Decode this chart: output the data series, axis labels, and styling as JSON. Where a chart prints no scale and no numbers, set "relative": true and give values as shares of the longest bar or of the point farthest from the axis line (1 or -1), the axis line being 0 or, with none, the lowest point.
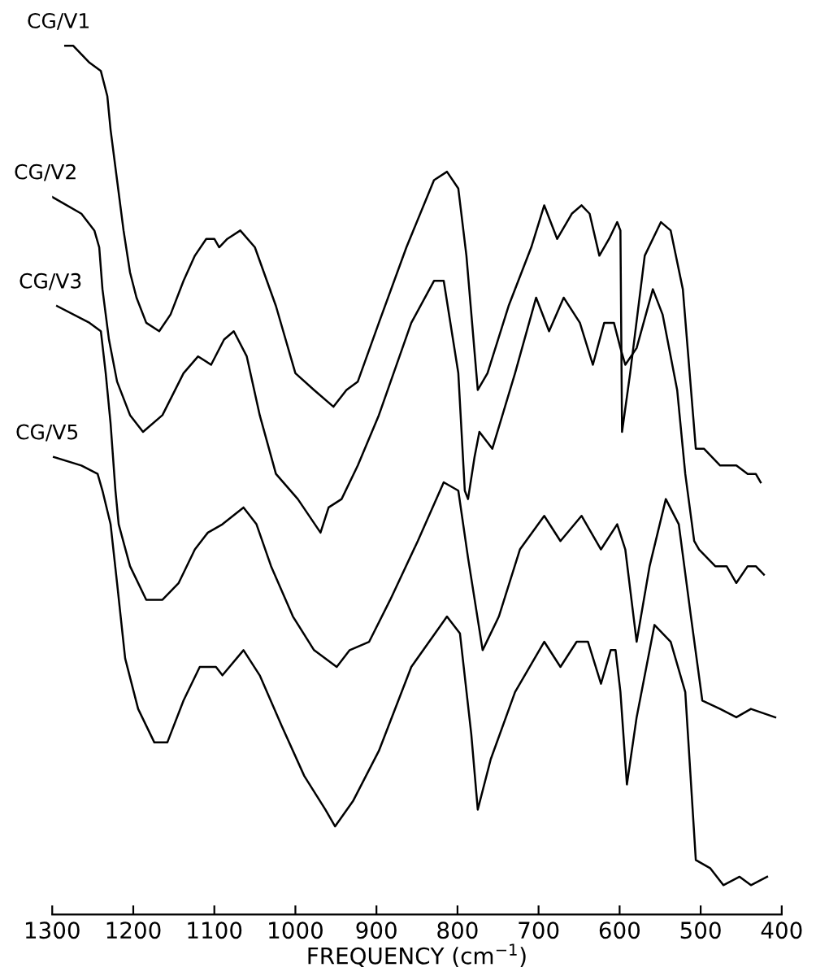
{
  "chart_data": {
    "type": "line",
    "relative": true,
    "xlabel": "FREQUENCY (cm$^{−1}$)",
    "xlim": [
      1300,
      400
    ],
    "xticks": [
      1300,
      1200,
      1100,
      1000,
      900,
      800,
      700,
      600,
      500,
      400
    ],
    "grid": false,
    "legend": false,
    "marker": "none",
    "line_style": "solid",
    "series": [
      {
        "name": "CG/V1",
        "color": "#000000",
        "x": [
          1284,
          1274,
          1254,
          1240,
          1232,
          1228,
          1220,
          1212,
          1204,
          1196,
          1184,
          1168,
          1154,
          1138,
          1124,
          1110,
          1100,
          1094,
          1084,
          1068,
          1050,
          1024,
          1000,
          977,
          953,
          937,
          923,
          897,
          863,
          829,
          813,
          799,
          789,
          775,
          763,
          737,
          709,
          693,
          677,
          659,
          647,
          637,
          625,
          613,
          603,
          599,
          597,
          587,
          569,
          549,
          537,
          522,
          506,
          496,
          476,
          456,
          442,
          432,
          426
        ],
        "values": [
          1.0,
          1.0,
          0.98,
          0.97,
          0.94,
          0.9,
          0.84,
          0.78,
          0.73,
          0.7,
          0.67,
          0.66,
          0.68,
          0.72,
          0.75,
          0.77,
          0.77,
          0.76,
          0.77,
          0.78,
          0.76,
          0.69,
          0.61,
          0.59,
          0.57,
          0.59,
          0.6,
          0.67,
          0.76,
          0.84,
          0.85,
          0.83,
          0.75,
          0.59,
          0.61,
          0.69,
          0.76,
          0.81,
          0.77,
          0.8,
          0.81,
          0.8,
          0.75,
          0.77,
          0.79,
          0.78,
          0.54,
          0.61,
          0.75,
          0.79,
          0.78,
          0.71,
          0.52,
          0.52,
          0.5,
          0.5,
          0.49,
          0.49,
          0.48
        ]
      },
      {
        "name": "CG/V2",
        "color": "#000000",
        "x": [
          1300,
          1264,
          1248,
          1242,
          1238,
          1230,
          1220,
          1204,
          1188,
          1164,
          1138,
          1120,
          1104,
          1088,
          1076,
          1060,
          1044,
          1024,
          997,
          969,
          959,
          943,
          923,
          897,
          857,
          829,
          817,
          799,
          791,
          787,
          779,
          773,
          757,
          729,
          703,
          687,
          669,
          649,
          633,
          619,
          607,
          599,
          593,
          579,
          559,
          547,
          529,
          519,
          508,
          502,
          482,
          468,
          456,
          442,
          432,
          422
        ],
        "values": [
          0.82,
          0.8,
          0.78,
          0.76,
          0.71,
          0.65,
          0.6,
          0.56,
          0.54,
          0.56,
          0.61,
          0.63,
          0.62,
          0.65,
          0.66,
          0.63,
          0.56,
          0.49,
          0.46,
          0.42,
          0.45,
          0.46,
          0.5,
          0.56,
          0.67,
          0.72,
          0.72,
          0.61,
          0.47,
          0.46,
          0.51,
          0.54,
          0.52,
          0.61,
          0.7,
          0.66,
          0.7,
          0.67,
          0.62,
          0.67,
          0.67,
          0.64,
          0.62,
          0.64,
          0.71,
          0.68,
          0.59,
          0.49,
          0.41,
          0.4,
          0.38,
          0.38,
          0.36,
          0.38,
          0.38,
          0.37
        ]
      },
      {
        "name": "CG/V3",
        "color": "#000000",
        "x": [
          1294,
          1254,
          1240,
          1234,
          1228,
          1222,
          1218,
          1204,
          1184,
          1164,
          1144,
          1124,
          1108,
          1090,
          1064,
          1048,
          1030,
          1003,
          977,
          949,
          933,
          909,
          883,
          849,
          817,
          799,
          787,
          769,
          749,
          723,
          693,
          673,
          647,
          623,
          603,
          593,
          579,
          563,
          543,
          527,
          512,
          498,
          476,
          456,
          438,
          408
        ],
        "values": [
          0.69,
          0.67,
          0.66,
          0.61,
          0.55,
          0.47,
          0.43,
          0.38,
          0.34,
          0.34,
          0.36,
          0.4,
          0.42,
          0.43,
          0.45,
          0.43,
          0.38,
          0.32,
          0.28,
          0.26,
          0.28,
          0.29,
          0.34,
          0.41,
          0.48,
          0.47,
          0.39,
          0.28,
          0.32,
          0.4,
          0.44,
          0.41,
          0.44,
          0.4,
          0.43,
          0.4,
          0.29,
          0.38,
          0.46,
          0.43,
          0.32,
          0.22,
          0.21,
          0.2,
          0.21,
          0.2
        ]
      },
      {
        "name": "CG/V5",
        "color": "#000000",
        "x": [
          1298,
          1264,
          1244,
          1238,
          1228,
          1220,
          1210,
          1194,
          1174,
          1158,
          1138,
          1118,
          1098,
          1090,
          1064,
          1044,
          1017,
          989,
          963,
          951,
          929,
          897,
          857,
          813,
          797,
          783,
          775,
          759,
          729,
          693,
          673,
          653,
          639,
          623,
          611,
          605,
          599,
          591,
          579,
          557,
          537,
          519,
          506,
          488,
          472,
          452,
          438,
          418
        ],
        "values": [
          0.51,
          0.5,
          0.49,
          0.47,
          0.43,
          0.36,
          0.27,
          0.21,
          0.17,
          0.17,
          0.22,
          0.26,
          0.26,
          0.25,
          0.28,
          0.25,
          0.19,
          0.13,
          0.09,
          0.07,
          0.1,
          0.16,
          0.26,
          0.32,
          0.3,
          0.18,
          0.09,
          0.15,
          0.23,
          0.29,
          0.26,
          0.29,
          0.29,
          0.24,
          0.28,
          0.28,
          0.23,
          0.12,
          0.2,
          0.31,
          0.29,
          0.23,
          0.03,
          0.02,
          0.0,
          0.01,
          0.0,
          0.01
        ]
      }
    ]
  }
}
